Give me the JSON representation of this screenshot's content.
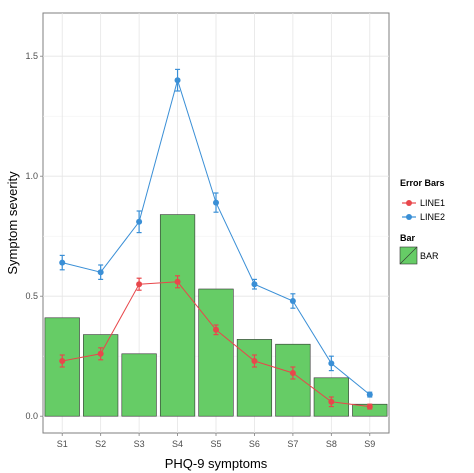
{
  "chart_data": {
    "type": "bar",
    "title": "",
    "xlabel": "PHQ-9 symptoms",
    "ylabel": "Symptom severity",
    "categories": [
      "S1",
      "S2",
      "S3",
      "S4",
      "S5",
      "S6",
      "S7",
      "S8",
      "S9"
    ],
    "ylim": [
      -0.07,
      1.68
    ],
    "yticks": [
      0.0,
      0.5,
      1.0,
      1.5
    ],
    "ytick_labels": [
      "0.0",
      "0.5",
      "1.0",
      "1.5"
    ],
    "grid": true,
    "bar_series": {
      "name": "BAR",
      "color": "#66cc66",
      "values": [
        0.41,
        0.34,
        0.26,
        0.84,
        0.53,
        0.32,
        0.3,
        0.16,
        0.05
      ]
    },
    "line_series": [
      {
        "name": "LINE1",
        "color": "#e8474b",
        "values": [
          0.23,
          0.26,
          0.55,
          0.56,
          0.36,
          0.23,
          0.18,
          0.06,
          0.04
        ],
        "errors": [
          0.025,
          0.025,
          0.025,
          0.025,
          0.02,
          0.025,
          0.025,
          0.02,
          0.01
        ]
      },
      {
        "name": "LINE2",
        "color": "#3a8fd6",
        "values": [
          0.64,
          0.6,
          0.81,
          1.4,
          0.89,
          0.55,
          0.48,
          0.22,
          0.09
        ],
        "errors": [
          0.03,
          0.03,
          0.045,
          0.045,
          0.04,
          0.02,
          0.03,
          0.03,
          0.01
        ]
      }
    ],
    "legend": {
      "placement": "right",
      "groups": [
        {
          "title": "Error Bars",
          "entries": [
            "LINE1",
            "LINE2"
          ]
        },
        {
          "title": "Bar",
          "entries": [
            "BAR"
          ]
        }
      ]
    }
  }
}
